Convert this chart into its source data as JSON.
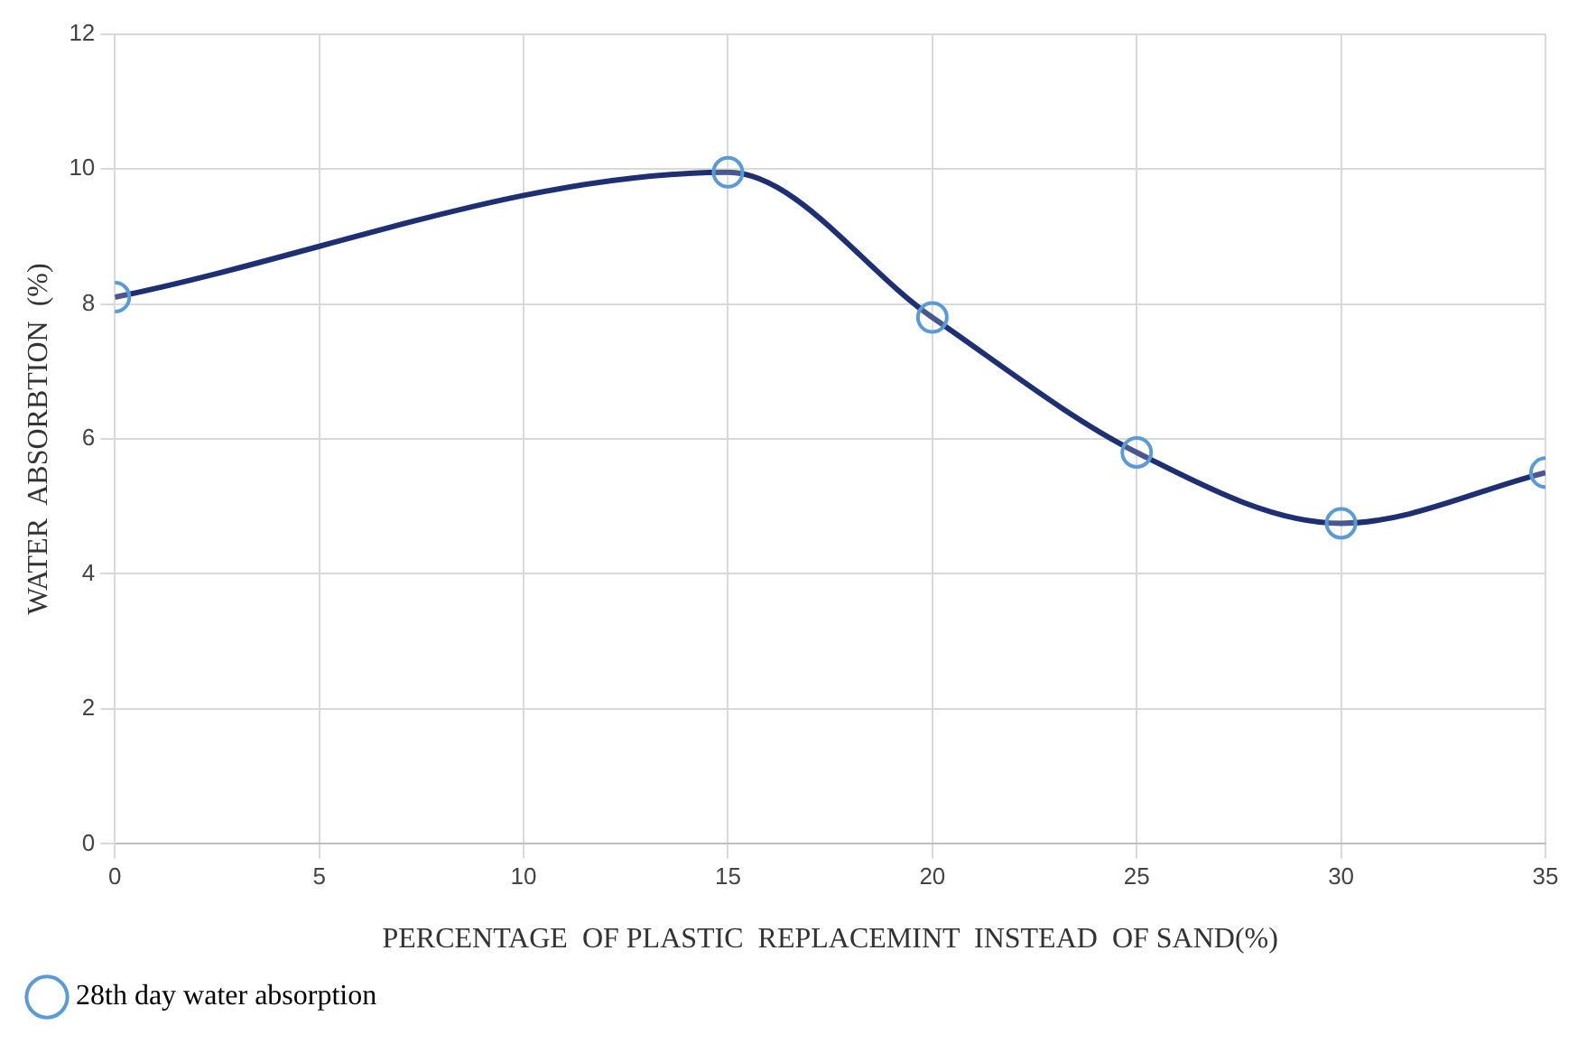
{
  "chart_data": {
    "type": "line",
    "xlabel": "PERCENTAGE  OF PLASTIC  REPLACEMINT  INSTEAD  OF SAND(%)",
    "ylabel": "WATER  ABSORBTION  (%)",
    "x": [
      0,
      15,
      20,
      25,
      30,
      35
    ],
    "series": [
      {
        "name": "28th day water absorption",
        "color": "#1f2f73",
        "values": [
          8.1,
          9.95,
          7.8,
          5.8,
          4.75,
          5.5
        ]
      }
    ],
    "xlim": [
      0,
      35
    ],
    "xticks": [
      0,
      5,
      10,
      15,
      20,
      25,
      30,
      35
    ],
    "ylim": [
      0,
      12
    ],
    "yticks": [
      0,
      2,
      4,
      6,
      8,
      10,
      12
    ],
    "grid": true,
    "legend": "bottom left",
    "marker": "circle",
    "line_style": "solid"
  }
}
